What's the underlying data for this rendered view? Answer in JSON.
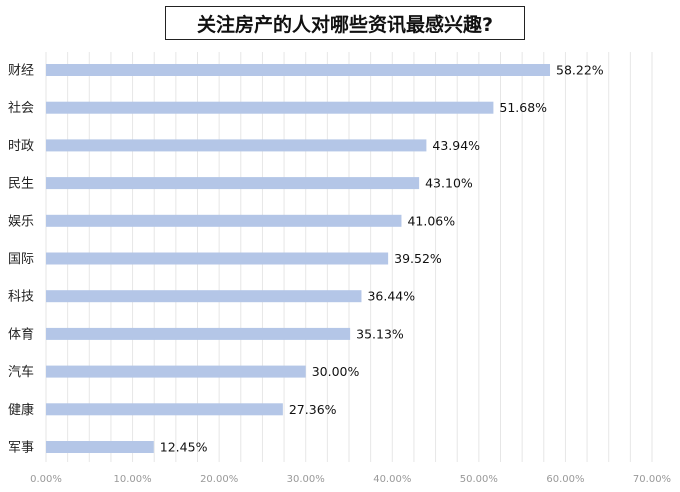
{
  "chart_data": {
    "type": "bar",
    "orientation": "horizontal",
    "title": "关注房产的人对哪些资讯最感兴趣?",
    "categories": [
      "财经",
      "社会",
      "时政",
      "民生",
      "娱乐",
      "国际",
      "科技",
      "体育",
      "汽车",
      "健康",
      "军事"
    ],
    "values": [
      58.22,
      51.68,
      43.94,
      43.1,
      41.06,
      39.52,
      36.44,
      35.13,
      30.0,
      27.36,
      12.45
    ],
    "value_labels": [
      "58.22%",
      "51.68%",
      "43.94%",
      "43.10%",
      "41.06%",
      "39.52%",
      "36.44%",
      "35.13%",
      "30.00%",
      "27.36%",
      "12.45%"
    ],
    "xlim": [
      0,
      70
    ],
    "x_ticks": [
      "0.00%",
      "10.00%",
      "20.00%",
      "30.00%",
      "40.00%",
      "50.00%",
      "60.00%",
      "70.00%"
    ],
    "xlabel": "",
    "ylabel": "",
    "grid": "vertical",
    "bar_color": "#b4c6e7",
    "grid_color": "#e6e6e6"
  }
}
